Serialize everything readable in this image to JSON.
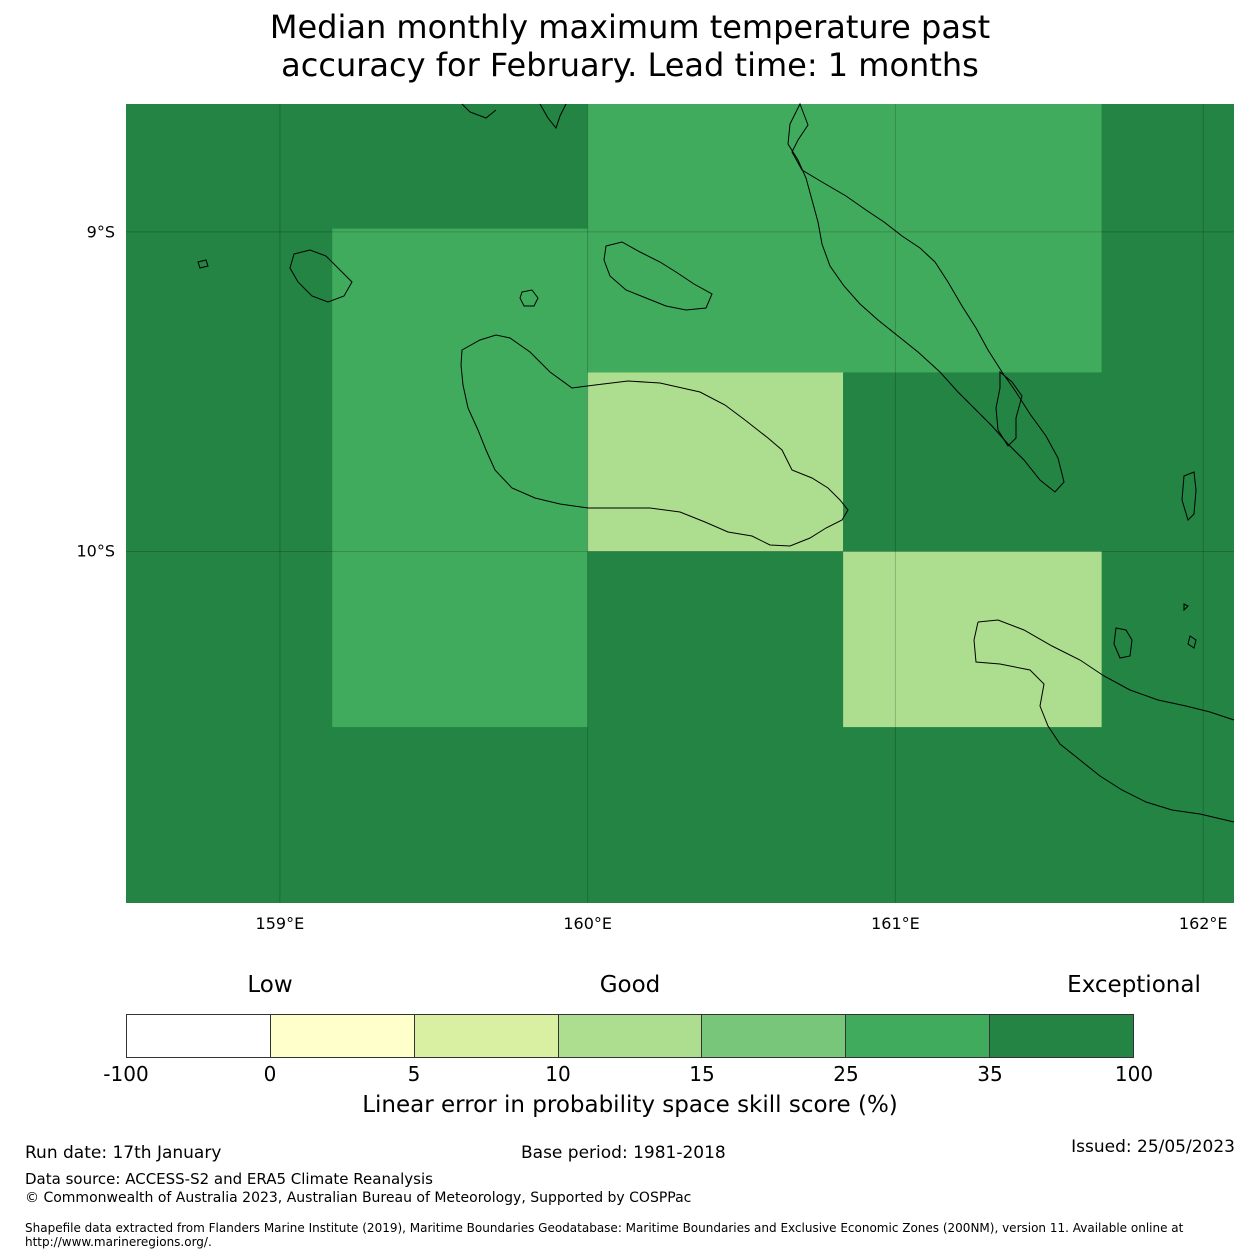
{
  "title": [
    "Median monthly maximum temperature past",
    "accuracy for February. Lead time: 1 months"
  ],
  "map": {
    "lon_range": [
      158.5,
      162.1
    ],
    "lat_range": [
      -11.1,
      -8.6
    ],
    "x_ticks": [
      {
        "lon": 159,
        "label": "159°E"
      },
      {
        "lon": 160,
        "label": "160°E"
      },
      {
        "lon": 161,
        "label": "161°E"
      },
      {
        "lon": 162,
        "label": "162°E"
      }
    ],
    "y_ticks": [
      {
        "lat": -9,
        "label": "9°S"
      },
      {
        "lat": -10,
        "label": "10°S"
      }
    ],
    "gridlines": true,
    "cells": [
      {
        "lon": [
          158.5,
          160.0
        ],
        "lat": [
          -8.6,
          -8.99
        ],
        "class": "35-100"
      },
      {
        "lon": [
          158.5,
          159.17
        ],
        "lat": [
          -8.99,
          -11.1
        ],
        "class": "35-100"
      },
      {
        "lon": [
          159.17,
          160.0
        ],
        "lat": [
          -8.99,
          -10.55
        ],
        "class": "25-35"
      },
      {
        "lon": [
          159.17,
          160.0
        ],
        "lat": [
          -10.55,
          -11.1
        ],
        "class": "35-100"
      },
      {
        "lon": [
          160.0,
          161.67
        ],
        "lat": [
          -8.6,
          -9.44
        ],
        "class": "25-35"
      },
      {
        "lon": [
          161.67,
          162.1
        ],
        "lat": [
          -8.6,
          -11.1
        ],
        "class": "35-100"
      },
      {
        "lon": [
          160.0,
          160.83
        ],
        "lat": [
          -9.44,
          -10.0
        ],
        "class": "10-15"
      },
      {
        "lon": [
          160.83,
          161.67
        ],
        "lat": [
          -9.44,
          -10.0
        ],
        "class": "35-100"
      },
      {
        "lon": [
          160.0,
          160.83
        ],
        "lat": [
          -10.0,
          -11.1
        ],
        "class": "35-100"
      },
      {
        "lon": [
          160.83,
          161.67
        ],
        "lat": [
          -10.0,
          -10.55
        ],
        "class": "10-15"
      },
      {
        "lon": [
          160.83,
          161.67
        ],
        "lat": [
          -10.55,
          -11.1
        ],
        "class": "35-100"
      }
    ]
  },
  "legend": {
    "categories": [
      {
        "label": "Low",
        "at": 1
      },
      {
        "label": "Good",
        "at": 3.5
      },
      {
        "label": "Exceptional",
        "at": 7
      }
    ],
    "bins": [
      {
        "from": -100,
        "to": 0,
        "color": "#ffffff"
      },
      {
        "from": 0,
        "to": 5,
        "color": "#ffffcc"
      },
      {
        "from": 5,
        "to": 10,
        "color": "#d9f0a3"
      },
      {
        "from": 10,
        "to": 15,
        "color": "#addd8e"
      },
      {
        "from": 15,
        "to": 25,
        "color": "#78c679"
      },
      {
        "from": 25,
        "to": 35,
        "color": "#41ab5d"
      },
      {
        "from": 35,
        "to": 100,
        "color": "#238443"
      }
    ],
    "tick_labels": [
      "-100",
      "0",
      "5",
      "10",
      "15",
      "25",
      "35",
      "100"
    ],
    "title": "Linear error in probability space skill score (%)"
  },
  "footer": {
    "run_date": "Run date: 17th January",
    "base_period": "Base period: 1981-2018",
    "issued": "Issued: 25/05/2023",
    "data_source": "Data source: ACCESS-S2 and ERA5 Climate Reanalysis",
    "copyright": "© Commonwealth of Australia 2023, Australian Bureau of Meteorology, Supported by COSPPac",
    "shapefile": "Shapefile data extracted from Flanders Marine Institute (2019), Maritime Boundaries Geodatabase: Maritime Boundaries and Exclusive Economic Zones (200NM), version 11. Available online at http://www.marineregions.org/."
  }
}
